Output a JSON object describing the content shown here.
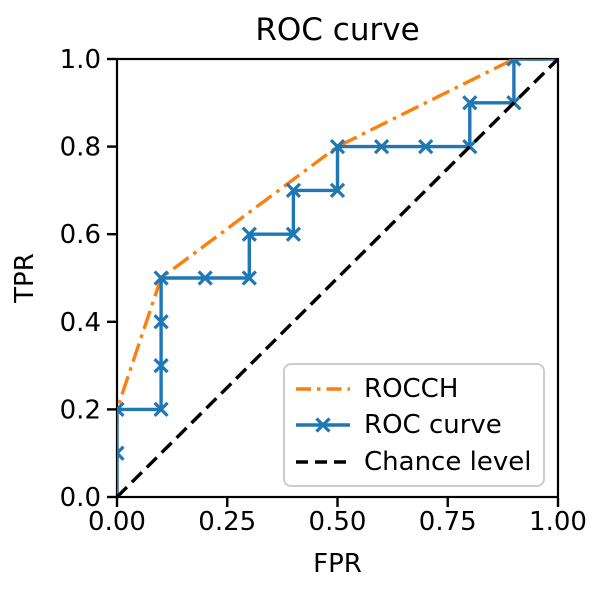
{
  "chart_data": {
    "type": "line",
    "title": "ROC curve",
    "xlabel": "FPR",
    "ylabel": "TPR",
    "xlim": [
      0,
      1
    ],
    "ylim": [
      0,
      1
    ],
    "grid": false,
    "legend_position": "lower right",
    "x_ticks": [
      0,
      0.25,
      0.5,
      0.75,
      1.0
    ],
    "x_ticklabels": [
      "0.00",
      "0.25",
      "0.50",
      "0.75",
      "1.00"
    ],
    "y_ticks": [
      0,
      0.2,
      0.4,
      0.6,
      0.8,
      1.0
    ],
    "y_ticklabels": [
      "0.0",
      "0.2",
      "0.4",
      "0.6",
      "0.8",
      "1.0"
    ],
    "axis_color": "#000000",
    "background_color": "#ffffff",
    "legend_border_color": "#cccccc",
    "series": [
      {
        "name": "ROCCH",
        "color": "#ff7f0e",
        "linestyle": "dashdot",
        "linewidth": 3.4,
        "marker": null,
        "points": [
          [
            0,
            0
          ],
          [
            0,
            0.2
          ],
          [
            0.1,
            0.5
          ],
          [
            0.5,
            0.8
          ],
          [
            0.9,
            1.0
          ],
          [
            1.0,
            1.0
          ]
        ]
      },
      {
        "name": "ROC curve",
        "color": "#1f77b4",
        "linestyle": "solid",
        "linewidth": 3.4,
        "marker": "x",
        "points": [
          [
            0,
            0
          ],
          [
            0,
            0.1
          ],
          [
            0,
            0.2
          ],
          [
            0.1,
            0.2
          ],
          [
            0.1,
            0.3
          ],
          [
            0.1,
            0.4
          ],
          [
            0.1,
            0.5
          ],
          [
            0.2,
            0.5
          ],
          [
            0.3,
            0.5
          ],
          [
            0.3,
            0.6
          ],
          [
            0.4,
            0.6
          ],
          [
            0.4,
            0.7
          ],
          [
            0.5,
            0.7
          ],
          [
            0.5,
            0.8
          ],
          [
            0.6,
            0.8
          ],
          [
            0.7,
            0.8
          ],
          [
            0.8,
            0.8
          ],
          [
            0.8,
            0.9
          ],
          [
            0.9,
            0.9
          ],
          [
            0.9,
            1.0
          ],
          [
            1.0,
            1.0
          ]
        ]
      },
      {
        "name": "Chance level",
        "color": "#000000",
        "linestyle": "dashed",
        "linewidth": 3.4,
        "marker": null,
        "points": [
          [
            0,
            0
          ],
          [
            1.0,
            1.0
          ]
        ]
      }
    ]
  }
}
